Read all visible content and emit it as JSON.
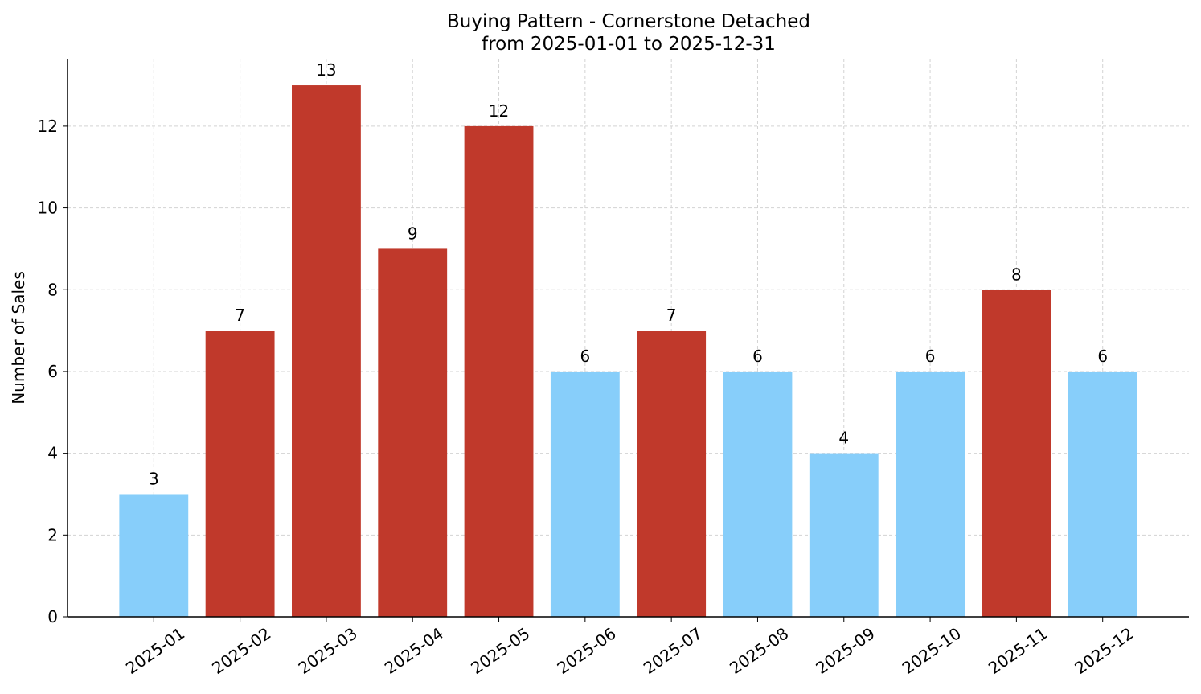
{
  "chart_data": {
    "type": "bar",
    "title": "Buying Pattern - Cornerstone Detached",
    "subtitle": "from 2025-01-01 to 2025-12-31",
    "y_label": "Number of Sales",
    "categories": [
      "2025-01",
      "2025-02",
      "2025-03",
      "2025-04",
      "2025-05",
      "2025-06",
      "2025-07",
      "2025-08",
      "2025-09",
      "2025-10",
      "2025-11",
      "2025-12"
    ],
    "values": [
      3,
      7,
      13,
      9,
      12,
      6,
      7,
      6,
      4,
      6,
      8,
      6
    ],
    "colors": [
      "#87cefa",
      "#c0392b",
      "#c0392b",
      "#c0392b",
      "#c0392b",
      "#87cefa",
      "#c0392b",
      "#87cefa",
      "#87cefa",
      "#87cefa",
      "#c0392b",
      "#87cefa"
    ],
    "ylim": [
      0,
      13.65
    ],
    "yticks": [
      0,
      2,
      4,
      6,
      8,
      10,
      12
    ],
    "grid": true
  }
}
